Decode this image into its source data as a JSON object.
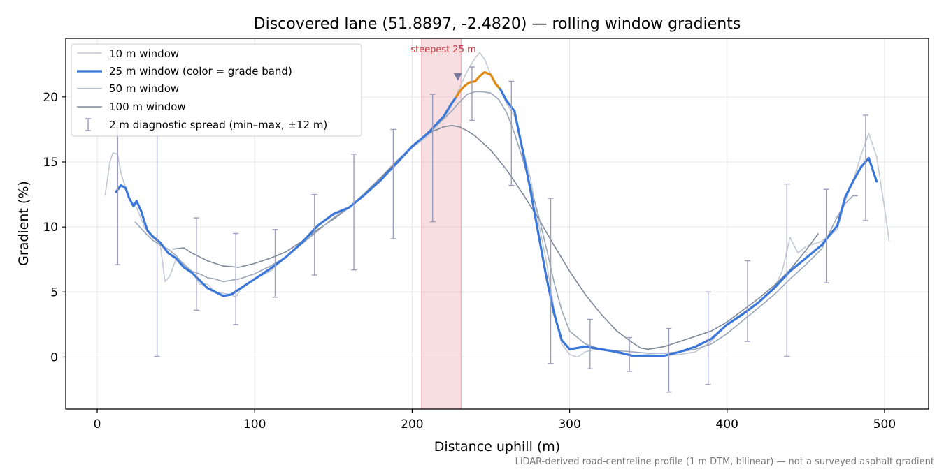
{
  "chart_data": {
    "type": "line",
    "title": "Discovered lane (51.8897, -2.4820) — rolling window gradients",
    "xlabel": "Distance uphill (m)",
    "ylabel": "Gradient (%)",
    "xlim": [
      -20,
      528
    ],
    "ylim": [
      -4,
      24.5
    ],
    "xticks": [
      0,
      100,
      200,
      300,
      400,
      500
    ],
    "yticks": [
      0,
      5,
      10,
      15,
      20
    ],
    "grid": true,
    "legend_position": "upper left",
    "footnote": "LiDAR-derived road-centreline profile (1 m DTM, bilinear) — not a surveyed asphalt gradient",
    "steepest_annotation": {
      "label": "steepest 25 m",
      "x_start": 206,
      "x_end": 231,
      "marker_x": 229,
      "marker_y": 21.4,
      "color": "#e8a0a8",
      "label_color": "#c0303a"
    },
    "colors": {
      "w10": "#c3c9d3",
      "w25_base": "#3a77d8",
      "w25_steep": "#e08a12",
      "w50": "#9aa6b5",
      "w100": "#7e8899",
      "errorbar": "#9e9ec0",
      "marker": "#7a7aa3"
    },
    "series": [
      {
        "name": "10 m window",
        "x": [
          5,
          8,
          10,
          13,
          15,
          18,
          20,
          25,
          30,
          35,
          40,
          43,
          46,
          50,
          55,
          60,
          65,
          70,
          75,
          80,
          85,
          88,
          92,
          100,
          110,
          120,
          130,
          140,
          150,
          160,
          170,
          180,
          190,
          200,
          210,
          220,
          225,
          230,
          235,
          240,
          243,
          246,
          250,
          255,
          260,
          265,
          270,
          275,
          280,
          285,
          290,
          295,
          300,
          305,
          310,
          320,
          330,
          340,
          350,
          360,
          370,
          380,
          390,
          400,
          410,
          420,
          430,
          435,
          440,
          445,
          450,
          460,
          470,
          475,
          480,
          485,
          490,
          495,
          500,
          503
        ],
        "y": [
          12.4,
          15.0,
          15.7,
          15.6,
          14.2,
          13.0,
          12.2,
          11.5,
          10.0,
          9.2,
          8.7,
          5.8,
          6.2,
          7.5,
          7.2,
          6.6,
          5.6,
          5.6,
          5.0,
          4.9,
          4.8,
          4.6,
          5.4,
          6.0,
          6.6,
          7.7,
          8.9,
          10.1,
          10.9,
          11.5,
          12.6,
          13.8,
          15.1,
          16.1,
          17.0,
          18.3,
          19.3,
          20.7,
          22.0,
          23.0,
          23.4,
          22.9,
          21.7,
          20.8,
          19.5,
          18.5,
          16.2,
          13.8,
          10.5,
          7.5,
          3.8,
          1.0,
          0.2,
          0.0,
          0.4,
          0.7,
          0.3,
          0.1,
          0.2,
          0.1,
          0.2,
          0.4,
          1.2,
          2.5,
          3.4,
          4.2,
          5.3,
          6.6,
          9.2,
          8.0,
          8.5,
          8.9,
          9.8,
          12.0,
          13.5,
          15.5,
          17.2,
          15.4,
          11.5,
          8.9
        ]
      },
      {
        "name": "25 m window (color = grade band)",
        "x": [
          12,
          15,
          18,
          20,
          23,
          25,
          28,
          30,
          32,
          35,
          40,
          45,
          50,
          55,
          60,
          65,
          70,
          75,
          80,
          85,
          90,
          95,
          100,
          110,
          120,
          130,
          140,
          150,
          160,
          170,
          180,
          190,
          200,
          210,
          220,
          225,
          228,
          230,
          233,
          236,
          240,
          243,
          246,
          250,
          253,
          256,
          260,
          265,
          270,
          275,
          280,
          285,
          290,
          295,
          300,
          305,
          310,
          320,
          330,
          340,
          350,
          360,
          370,
          380,
          390,
          400,
          410,
          420,
          430,
          440,
          450,
          460,
          470,
          475,
          480,
          485,
          490,
          495
        ],
        "y": [
          12.7,
          13.2,
          13.0,
          12.3,
          11.6,
          12.0,
          11.2,
          10.4,
          9.7,
          9.3,
          8.8,
          8.0,
          7.6,
          6.9,
          6.5,
          5.9,
          5.3,
          5.0,
          4.7,
          4.8,
          5.2,
          5.6,
          6.0,
          6.8,
          7.7,
          8.8,
          10.1,
          11.0,
          11.5,
          12.5,
          13.6,
          14.9,
          16.2,
          17.2,
          18.5,
          19.5,
          20.0,
          20.4,
          20.8,
          21.1,
          21.2,
          21.6,
          21.9,
          21.7,
          21.0,
          20.6,
          19.7,
          18.9,
          16.0,
          12.9,
          9.6,
          6.3,
          3.4,
          1.3,
          0.6,
          0.7,
          0.8,
          0.6,
          0.4,
          0.1,
          0.1,
          0.1,
          0.4,
          0.8,
          1.4,
          2.5,
          3.3,
          4.2,
          5.3,
          6.6,
          7.6,
          8.6,
          10.1,
          12.3,
          13.5,
          14.6,
          15.3,
          13.5
        ],
        "steep_x_range": [
          229,
          259
        ]
      },
      {
        "name": "50 m window",
        "x": [
          24,
          30,
          35,
          40,
          45,
          50,
          55,
          60,
          65,
          70,
          75,
          80,
          85,
          90,
          95,
          100,
          110,
          120,
          130,
          140,
          150,
          160,
          170,
          180,
          190,
          200,
          210,
          220,
          225,
          230,
          235,
          240,
          245,
          250,
          255,
          260,
          265,
          270,
          275,
          280,
          285,
          290,
          295,
          300,
          310,
          320,
          330,
          340,
          350,
          360,
          370,
          380,
          390,
          400,
          410,
          420,
          430,
          440,
          450,
          460,
          470,
          475,
          480,
          483
        ],
        "y": [
          10.4,
          9.6,
          9.0,
          8.6,
          8.3,
          7.8,
          7.1,
          6.6,
          6.4,
          6.1,
          6.0,
          5.8,
          5.9,
          6.0,
          6.2,
          6.4,
          7.0,
          7.7,
          8.7,
          9.7,
          10.7,
          11.5,
          12.5,
          13.6,
          14.8,
          16.1,
          17.3,
          18.3,
          18.9,
          19.6,
          20.2,
          20.4,
          20.4,
          20.3,
          19.8,
          18.8,
          17.2,
          15.3,
          13.2,
          11.0,
          8.5,
          5.8,
          3.6,
          2.0,
          1.0,
          0.6,
          0.5,
          0.4,
          0.3,
          0.3,
          0.4,
          0.6,
          1.0,
          1.8,
          2.8,
          3.8,
          4.8,
          6.0,
          7.1,
          8.3,
          10.8,
          11.8,
          12.4,
          12.4
        ]
      },
      {
        "name": "100 m window",
        "x": [
          48,
          55,
          60,
          70,
          80,
          90,
          100,
          110,
          120,
          130,
          140,
          150,
          160,
          170,
          180,
          190,
          200,
          210,
          220,
          225,
          230,
          235,
          240,
          250,
          260,
          270,
          280,
          290,
          300,
          310,
          320,
          330,
          340,
          345,
          350,
          360,
          370,
          380,
          390,
          400,
          410,
          420,
          430,
          440,
          450,
          458
        ],
        "y": [
          8.3,
          8.4,
          8.0,
          7.4,
          7.0,
          6.9,
          7.2,
          7.6,
          8.1,
          8.9,
          9.8,
          10.6,
          11.5,
          12.6,
          13.8,
          15.0,
          16.2,
          17.2,
          17.7,
          17.8,
          17.7,
          17.4,
          17.0,
          15.9,
          14.4,
          12.6,
          10.7,
          8.6,
          6.6,
          4.8,
          3.3,
          2.0,
          1.1,
          0.7,
          0.6,
          0.8,
          1.2,
          1.6,
          2.0,
          2.7,
          3.6,
          4.5,
          5.5,
          6.7,
          8.2,
          9.5
        ]
      }
    ],
    "error_bars": {
      "name": "2 m diagnostic spread (min–max, ±12 m)",
      "x": [
        13,
        38,
        63,
        88,
        113,
        138,
        163,
        188,
        213,
        238,
        263,
        288,
        313,
        338,
        363,
        388,
        413,
        438,
        463,
        488
      ],
      "y": [
        13.0,
        8.5,
        7.2,
        5.0,
        7.0,
        8.9,
        11.0,
        14.0,
        17.5,
        20.8,
        19.4,
        10.0,
        0.8,
        0.5,
        0.2,
        0.8,
        3.8,
        8.0,
        9.0,
        15.2
      ],
      "ymin": [
        7.1,
        0.05,
        3.6,
        2.5,
        4.6,
        6.3,
        6.7,
        9.1,
        10.4,
        18.2,
        13.2,
        -0.5,
        -0.9,
        -1.1,
        -2.7,
        -2.1,
        1.2,
        0.05,
        5.7,
        10.5
      ],
      "ymax": [
        18.2,
        17.5,
        10.7,
        9.5,
        9.8,
        12.5,
        15.6,
        17.5,
        20.2,
        22.3,
        21.2,
        12.2,
        2.9,
        1.5,
        2.2,
        5.0,
        7.4,
        13.3,
        12.9,
        18.6
      ]
    }
  }
}
